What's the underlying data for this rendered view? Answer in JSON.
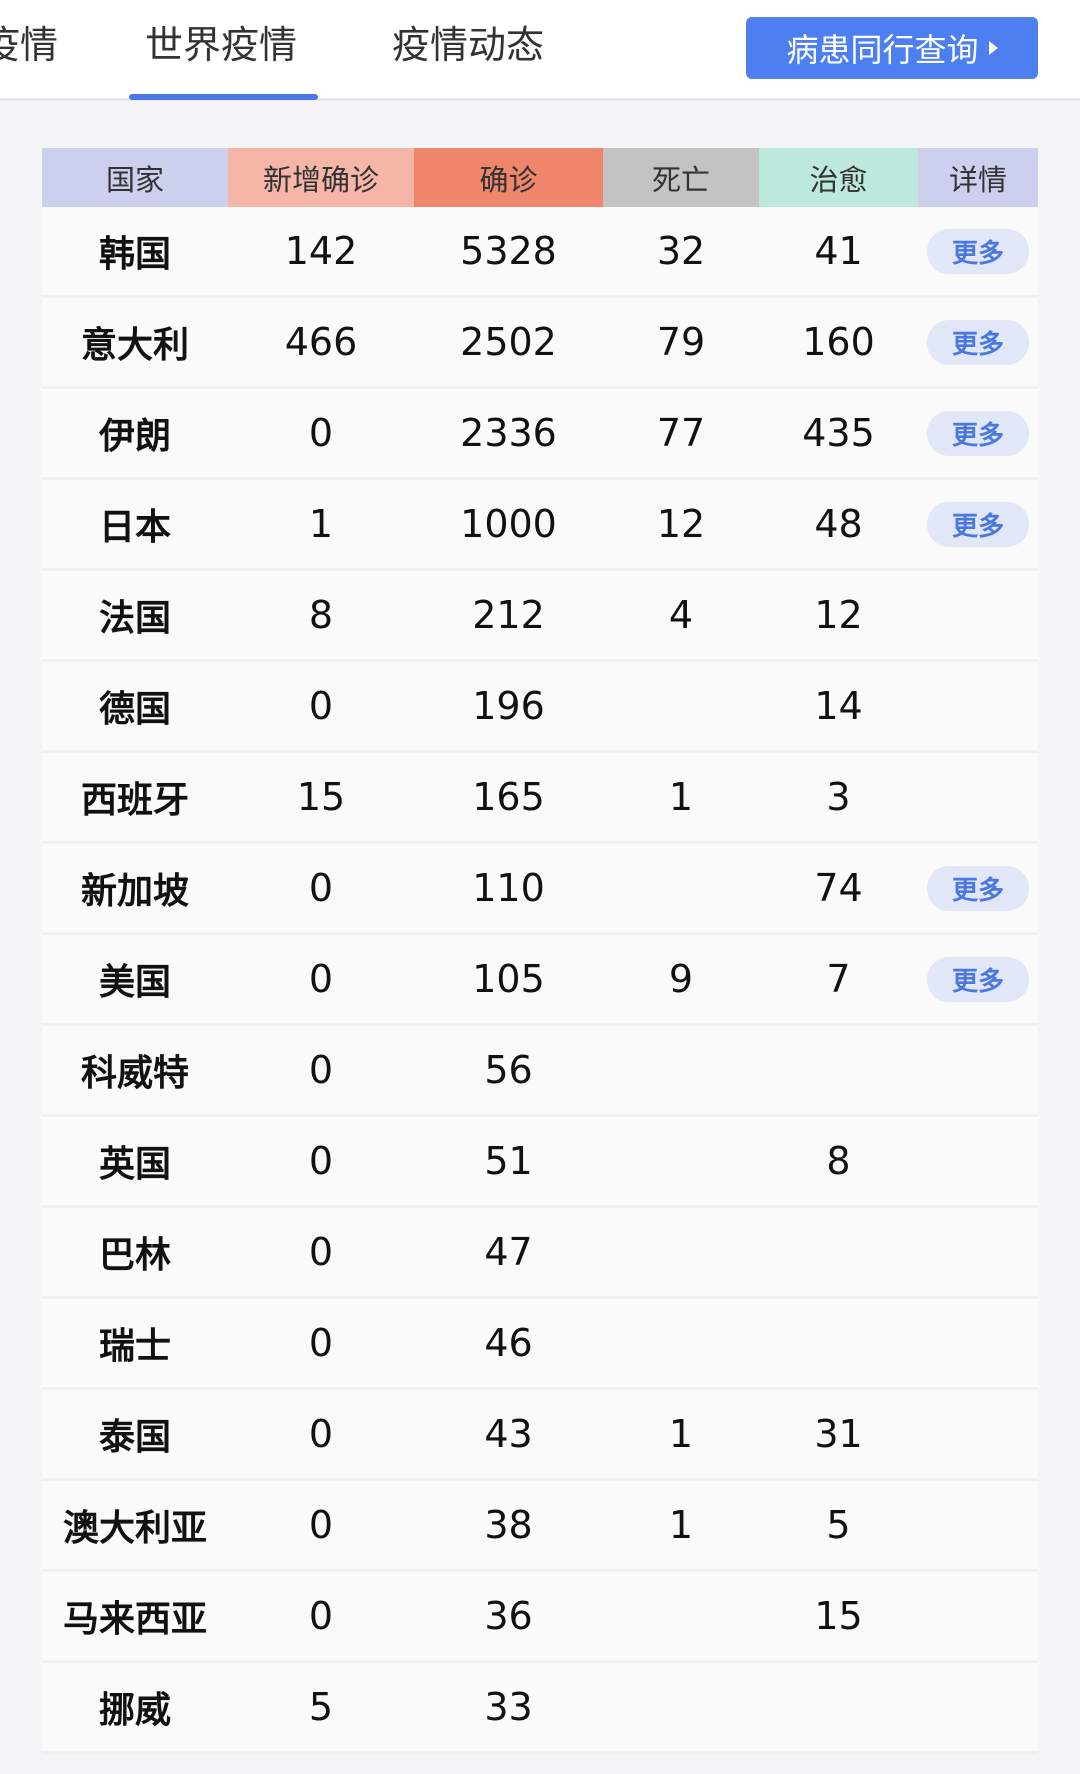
{
  "tabs": [
    {
      "label": "疫情"
    },
    {
      "label": "世界疫情",
      "active": true
    },
    {
      "label": "疫情动态"
    }
  ],
  "query_button": {
    "label": "病患同行查询"
  },
  "colors": {
    "accent": "#4d7ff0",
    "country": "#cccfee",
    "new": "#f5b6a8",
    "confirmed": "#ef866c",
    "dead": "#c3c3c3",
    "cured": "#bde9dc",
    "detail": "#cccfee"
  },
  "table": {
    "headers": [
      "国家",
      "新增确诊",
      "确诊",
      "死亡",
      "治愈",
      "详情"
    ],
    "more_label": "更多",
    "rows": [
      {
        "country": "韩国",
        "new": "142",
        "confirmed": "5328",
        "dead": "32",
        "cured": "41",
        "more": true
      },
      {
        "country": "意大利",
        "new": "466",
        "confirmed": "2502",
        "dead": "79",
        "cured": "160",
        "more": true
      },
      {
        "country": "伊朗",
        "new": "0",
        "confirmed": "2336",
        "dead": "77",
        "cured": "435",
        "more": true
      },
      {
        "country": "日本",
        "new": "1",
        "confirmed": "1000",
        "dead": "12",
        "cured": "48",
        "more": true
      },
      {
        "country": "法国",
        "new": "8",
        "confirmed": "212",
        "dead": "4",
        "cured": "12",
        "more": false
      },
      {
        "country": "德国",
        "new": "0",
        "confirmed": "196",
        "dead": "",
        "cured": "14",
        "more": false
      },
      {
        "country": "西班牙",
        "new": "15",
        "confirmed": "165",
        "dead": "1",
        "cured": "3",
        "more": false
      },
      {
        "country": "新加坡",
        "new": "0",
        "confirmed": "110",
        "dead": "",
        "cured": "74",
        "more": true
      },
      {
        "country": "美国",
        "new": "0",
        "confirmed": "105",
        "dead": "9",
        "cured": "7",
        "more": true
      },
      {
        "country": "科威特",
        "new": "0",
        "confirmed": "56",
        "dead": "",
        "cured": "",
        "more": false
      },
      {
        "country": "英国",
        "new": "0",
        "confirmed": "51",
        "dead": "",
        "cured": "8",
        "more": false
      },
      {
        "country": "巴林",
        "new": "0",
        "confirmed": "47",
        "dead": "",
        "cured": "",
        "more": false
      },
      {
        "country": "瑞士",
        "new": "0",
        "confirmed": "46",
        "dead": "",
        "cured": "",
        "more": false
      },
      {
        "country": "泰国",
        "new": "0",
        "confirmed": "43",
        "dead": "1",
        "cured": "31",
        "more": false
      },
      {
        "country": "澳大利亚",
        "new": "0",
        "confirmed": "38",
        "dead": "1",
        "cured": "5",
        "more": false
      },
      {
        "country": "马来西亚",
        "new": "0",
        "confirmed": "36",
        "dead": "",
        "cured": "15",
        "more": false
      },
      {
        "country": "挪威",
        "new": "5",
        "confirmed": "33",
        "dead": "",
        "cured": "",
        "more": false
      }
    ]
  }
}
